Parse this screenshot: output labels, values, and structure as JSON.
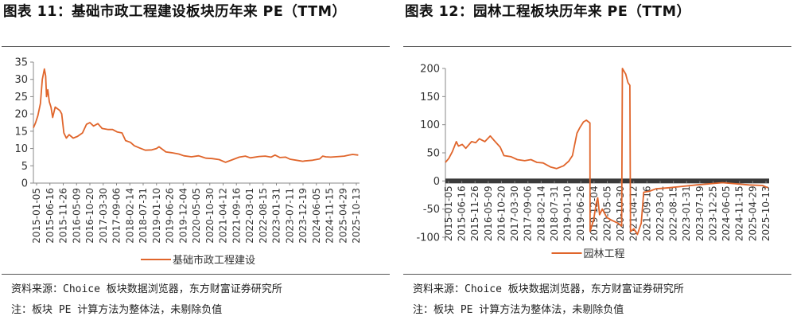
{
  "chart_data": [
    {
      "type": "line",
      "title": "图表 11：基础市政工程建设板块历年来 PE（TTM）",
      "series": [
        {
          "name": "基础市政工程建设",
          "color": "#e0652b",
          "points": [
            [
              "2015-01-05",
              16.0
            ],
            [
              "2015-02-01",
              17.5
            ],
            [
              "2015-03-01",
              19.5
            ],
            [
              "2015-04-01",
              23.0
            ],
            [
              "2015-04-25",
              30.0
            ],
            [
              "2015-05-20",
              33.0
            ],
            [
              "2015-06-05",
              31.0
            ],
            [
              "2015-06-16",
              25.0
            ],
            [
              "2015-07-01",
              27.0
            ],
            [
              "2015-07-20",
              23.5
            ],
            [
              "2015-08-10",
              22.0
            ],
            [
              "2015-08-30",
              19.0
            ],
            [
              "2015-10-01",
              22.0
            ],
            [
              "2015-11-26",
              21.0
            ],
            [
              "2015-12-20",
              20.0
            ],
            [
              "2016-01-15",
              14.5
            ],
            [
              "2016-02-15",
              13.0
            ],
            [
              "2016-03-20",
              14.0
            ],
            [
              "2016-05-09",
              13.0
            ],
            [
              "2016-07-01",
              13.5
            ],
            [
              "2016-09-01",
              14.5
            ],
            [
              "2016-10-20",
              17.0
            ],
            [
              "2016-12-01",
              17.5
            ],
            [
              "2017-01-15",
              16.5
            ],
            [
              "2017-03-10",
              17.2
            ],
            [
              "2017-05-01",
              15.8
            ],
            [
              "2017-07-15",
              15.5
            ],
            [
              "2017-09-06",
              15.5
            ],
            [
              "2017-11-01",
              14.8
            ],
            [
              "2018-01-01",
              14.5
            ],
            [
              "2018-02-14",
              12.3
            ],
            [
              "2018-04-15",
              11.8
            ],
            [
              "2018-06-01",
              10.8
            ],
            [
              "2018-07-31",
              10.2
            ],
            [
              "2018-10-15",
              9.5
            ],
            [
              "2019-01-02",
              9.6
            ],
            [
              "2019-03-01",
              10.0
            ],
            [
              "2019-04-01",
              10.5
            ],
            [
              "2019-06-26",
              9.0
            ],
            [
              "2019-09-01",
              8.8
            ],
            [
              "2019-12-01",
              8.4
            ],
            [
              "2020-02-01",
              7.9
            ],
            [
              "2020-05-05",
              7.6
            ],
            [
              "2020-08-01",
              7.9
            ],
            [
              "2020-10-30",
              7.2
            ],
            [
              "2021-01-15",
              7.1
            ],
            [
              "2021-04-12",
              6.8
            ],
            [
              "2021-06-30",
              6.0
            ],
            [
              "2021-09-16",
              6.7
            ],
            [
              "2021-12-15",
              7.5
            ],
            [
              "2022-03-01",
              7.8
            ],
            [
              "2022-05-01",
              7.3
            ],
            [
              "2022-08-15",
              7.7
            ],
            [
              "2022-11-01",
              7.8
            ],
            [
              "2023-01-10",
              7.5
            ],
            [
              "2023-03-01",
              8.1
            ],
            [
              "2023-05-01",
              7.4
            ],
            [
              "2023-07-11",
              7.5
            ],
            [
              "2023-09-01",
              6.9
            ],
            [
              "2023-12-19",
              6.5
            ],
            [
              "2024-02-05",
              6.3
            ],
            [
              "2024-03-01",
              6.4
            ],
            [
              "2024-06-05",
              6.6
            ],
            [
              "2024-09-01",
              7.0
            ],
            [
              "2024-10-08",
              7.8
            ],
            [
              "2024-11-15",
              7.6
            ],
            [
              "2025-01-15",
              7.5
            ],
            [
              "2025-04-29",
              7.7
            ],
            [
              "2025-07-01",
              7.8
            ],
            [
              "2025-09-01",
              8.1
            ],
            [
              "2025-10-13",
              8.3
            ],
            [
              "2025-12-20",
              8.1
            ]
          ]
        }
      ],
      "x_tick_labels": [
        "2015-01-05",
        "2015-06-16",
        "2015-11-26",
        "2016-05-09",
        "2016-10-20",
        "2017-03-30",
        "2017-09-06",
        "2018-02-14",
        "2018-07-31",
        "2019-01-10",
        "2019-06-26",
        "2019-12-04",
        "2020-05-05",
        "2020-10-30",
        "2021-04-12",
        "2021-09-16",
        "2022-03-01",
        "2022-08-15",
        "2023-01-31",
        "2023-07-11",
        "2023-12-19",
        "2024-06-05",
        "2024-11-15",
        "2025-04-29",
        "2025-10-13"
      ],
      "x_range": [
        "2015-01-05",
        "2026-01-05"
      ],
      "ylim": [
        0,
        35
      ],
      "yticks": [
        0,
        5,
        10,
        15,
        20,
        25,
        30,
        35
      ],
      "grid": false,
      "legend": "bottom-center",
      "source": "资料来源：Choice 板块数据浏览器，东方财富证券研究所",
      "note": "注：板块 PE 计算方法为整体法，未剔除负值"
    },
    {
      "type": "line",
      "title": "图表 12：园林工程板块历年来 PE（TTM）",
      "series": [
        {
          "name": "园林工程",
          "color": "#e0652b",
          "points": [
            [
              "2015-01-05",
              33
            ],
            [
              "2015-02-15",
              40
            ],
            [
              "2015-04-01",
              52
            ],
            [
              "2015-05-20",
              70
            ],
            [
              "2015-06-16",
              62
            ],
            [
              "2015-08-01",
              65
            ],
            [
              "2015-09-15",
              58
            ],
            [
              "2015-11-26",
              70
            ],
            [
              "2016-01-15",
              68
            ],
            [
              "2016-03-01",
              75
            ],
            [
              "2016-05-09",
              70
            ],
            [
              "2016-07-15",
              80
            ],
            [
              "2016-09-01",
              72
            ],
            [
              "2016-11-15",
              60
            ],
            [
              "2017-01-01",
              45
            ],
            [
              "2017-03-30",
              43
            ],
            [
              "2017-06-15",
              38
            ],
            [
              "2017-09-15",
              36
            ],
            [
              "2017-12-01",
              38
            ],
            [
              "2018-02-14",
              33
            ],
            [
              "2018-05-01",
              32
            ],
            [
              "2018-07-31",
              25
            ],
            [
              "2018-10-15",
              22
            ],
            [
              "2019-01-10",
              27
            ],
            [
              "2019-03-15",
              35
            ],
            [
              "2019-05-01",
              45
            ],
            [
              "2019-06-26",
              85
            ],
            [
              "2019-08-01",
              95
            ],
            [
              "2019-09-15",
              105
            ],
            [
              "2019-10-20",
              108
            ],
            [
              "2019-12-04",
              103
            ],
            [
              "2019-12-06",
              -90
            ],
            [
              "2020-01-20",
              -68
            ],
            [
              "2020-02-20",
              -40
            ],
            [
              "2020-03-10",
              -30
            ],
            [
              "2020-04-01",
              -60
            ],
            [
              "2020-05-05",
              -50
            ],
            [
              "2020-07-01",
              -65
            ],
            [
              "2020-09-01",
              -70
            ],
            [
              "2020-11-15",
              -75
            ],
            [
              "2021-01-01",
              -80
            ],
            [
              "2021-01-10",
              200
            ],
            [
              "2021-02-20",
              190
            ],
            [
              "2021-03-20",
              175
            ],
            [
              "2021-04-12",
              170
            ],
            [
              "2021-04-20",
              -90
            ],
            [
              "2021-06-01",
              -85
            ],
            [
              "2021-07-15",
              -95
            ],
            [
              "2021-09-01",
              -75
            ],
            [
              "2021-10-01",
              -20
            ],
            [
              "2021-12-15",
              -18
            ],
            [
              "2022-03-01",
              -14
            ],
            [
              "2022-08-15",
              -12
            ],
            [
              "2023-01-01",
              -10
            ],
            [
              "2023-07-19",
              -7
            ],
            [
              "2024-01-01",
              -5
            ],
            [
              "2024-06-05",
              -3
            ],
            [
              "2024-11-15",
              -5
            ],
            [
              "2025-04-29",
              -7
            ],
            [
              "2025-10-13",
              -8
            ],
            [
              "2025-12-20",
              -12
            ]
          ]
        }
      ],
      "x_tick_labels": [
        "2015-01-05",
        "2015-06-16",
        "2015-11-26",
        "2016-05-09",
        "2016-10-20",
        "2017-03-30",
        "2017-09-06",
        "2018-02-14",
        "2018-07-31",
        "2019-01-10",
        "2019-06-26",
        "2019-12-04",
        "2020-05-05",
        "2020-10-30",
        "2021-04-12",
        "2021-09-16",
        "2022-03-01",
        "2022-08-15",
        "2023-01-31",
        "2023-07-19",
        "2023-12-25",
        "2024-06-05",
        "2024-11-15",
        "2025-04-29",
        "2025-10-13"
      ],
      "x_range": [
        "2015-01-05",
        "2026-01-05"
      ],
      "ylim": [
        -100,
        200
      ],
      "yticks": [
        -100,
        -50,
        0,
        50,
        100,
        150,
        200
      ],
      "grid": false,
      "legend": "bottom-center",
      "source": "资料来源：Choice 板块数据浏览器，东方财富证券研究所",
      "note": "注：板块 PE 计算方法为整体法，未剔除负值"
    }
  ]
}
